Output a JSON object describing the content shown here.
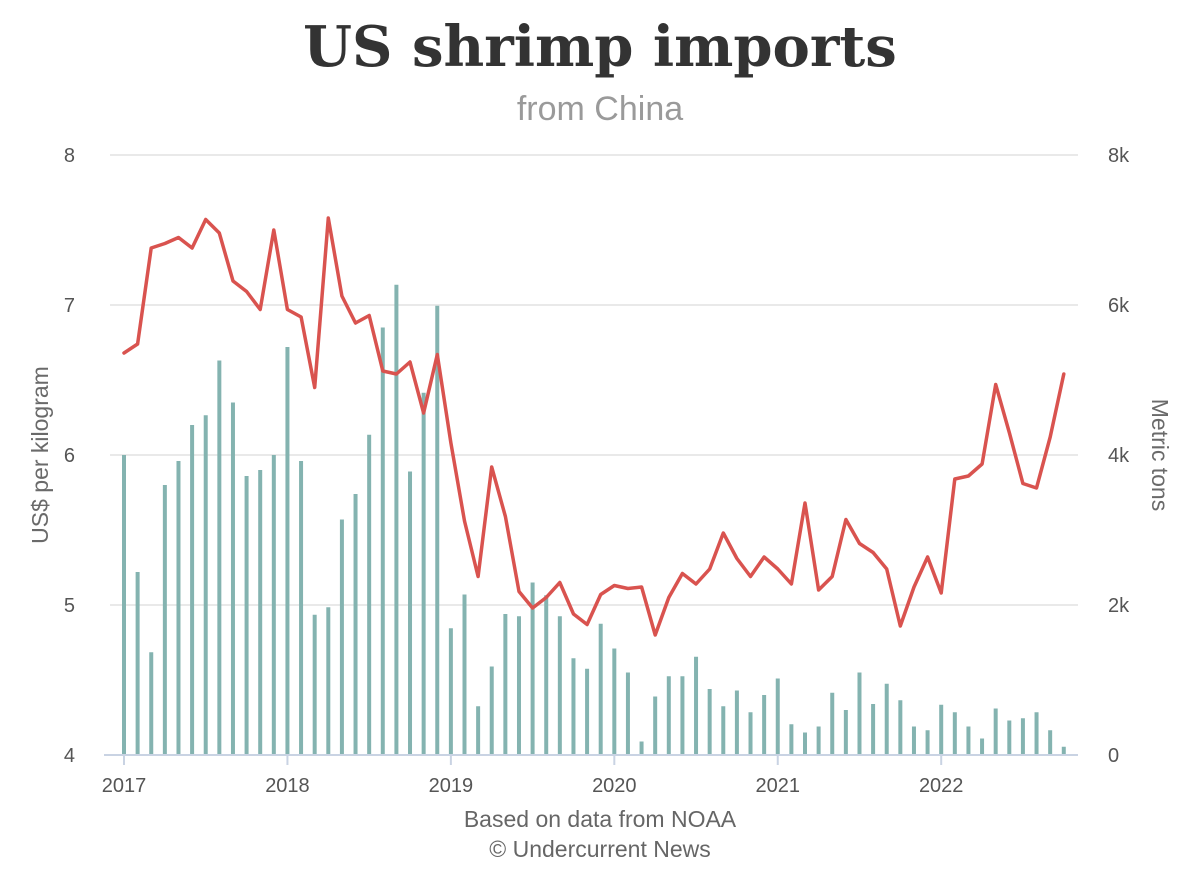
{
  "title": "US shrimp imports",
  "subtitle": "from China",
  "footer": {
    "source": "Based on data from NOAA",
    "credit": "© Undercurrent News"
  },
  "colors": {
    "line": "#d9534f",
    "bars": "#84b3b0",
    "grid": "#e2e2e2"
  },
  "chart_data": {
    "type": "bar+line",
    "start": "2017-01",
    "x_ticks": [
      "2017",
      "2018",
      "2019",
      "2020",
      "2021",
      "2022"
    ],
    "left_axis": {
      "label": "US$ per kilogram",
      "range": [
        4,
        8
      ],
      "ticks": [
        "4",
        "5",
        "6",
        "7",
        "8"
      ]
    },
    "right_axis": {
      "label": "Metric tons",
      "range": [
        0,
        8000
      ],
      "ticks": [
        "0",
        "2k",
        "4k",
        "6k",
        "8k"
      ]
    },
    "series": [
      {
        "axis": "right",
        "type": "bar",
        "values": [
          4000,
          2440,
          1370,
          3600,
          3920,
          4400,
          4530,
          5260,
          4700,
          3720,
          3800,
          4000,
          5440,
          3920,
          1870,
          1970,
          3140,
          3480,
          4270,
          5700,
          6270,
          3780,
          4830,
          5990,
          1690,
          2140,
          650,
          1180,
          1880,
          1850,
          2300,
          2130,
          1850,
          1290,
          1150,
          1750,
          1420,
          1100,
          180,
          780,
          1050,
          1050,
          1310,
          880,
          650,
          860,
          570,
          800,
          1020,
          410,
          300,
          380,
          830,
          600,
          1100,
          680,
          950,
          730,
          380,
          330,
          670,
          570,
          380,
          220,
          620,
          460,
          490,
          570,
          330,
          110
        ]
      },
      {
        "axis": "left",
        "type": "line",
        "values": [
          6.68,
          6.74,
          7.38,
          7.41,
          7.45,
          7.38,
          7.57,
          7.48,
          7.16,
          7.09,
          6.97,
          7.5,
          6.97,
          6.92,
          6.45,
          7.58,
          7.06,
          6.88,
          6.93,
          6.56,
          6.54,
          6.62,
          6.28,
          6.67,
          6.08,
          5.56,
          5.19,
          5.92,
          5.59,
          5.09,
          4.98,
          5.05,
          5.15,
          4.94,
          4.87,
          5.07,
          5.13,
          5.11,
          5.12,
          4.8,
          5.05,
          5.21,
          5.14,
          5.24,
          5.48,
          5.31,
          5.19,
          5.32,
          5.24,
          5.14,
          5.68,
          5.1,
          5.19,
          5.57,
          5.41,
          5.35,
          5.24,
          4.86,
          5.12,
          5.32,
          5.08,
          5.84,
          5.86,
          5.94,
          6.47,
          6.15,
          5.81,
          5.78,
          6.12,
          6.54
        ]
      }
    ]
  }
}
